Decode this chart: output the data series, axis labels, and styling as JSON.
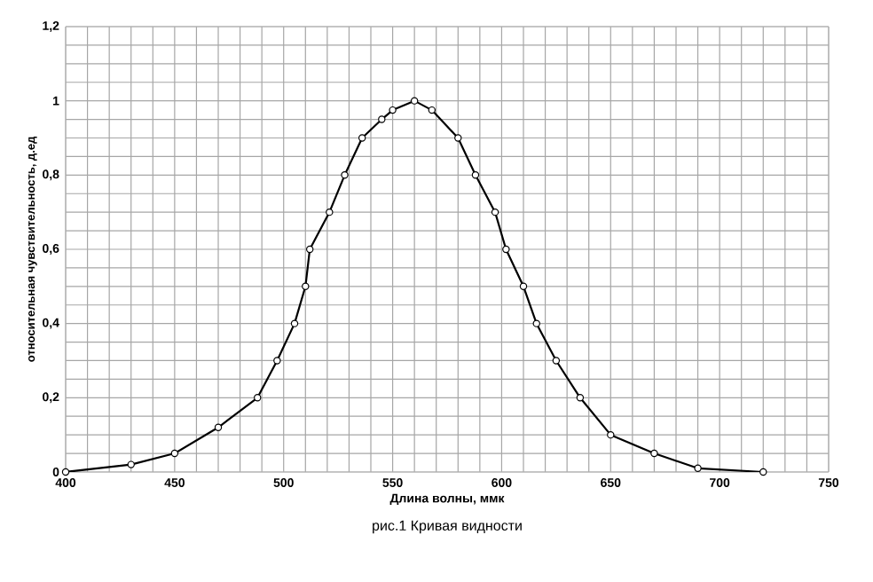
{
  "chart_data": {
    "type": "line",
    "xlabel": "Длина волны, ммк",
    "ylabel": "относительная чувствительность, д.ед",
    "annotations": [
      "рис.1 Кривая видности"
    ],
    "x": [
      400,
      430,
      450,
      470,
      488,
      497,
      505,
      510,
      512,
      521,
      528,
      536,
      545,
      550,
      560,
      568,
      580,
      588,
      597,
      602,
      610,
      616,
      625,
      636,
      650,
      670,
      690,
      720
    ],
    "series": [
      {
        "color": "#000000",
        "values": [
          0,
          0.02,
          0.05,
          0.12,
          0.2,
          0.3,
          0.4,
          0.5,
          0.6,
          0.7,
          0.8,
          0.9,
          0.95,
          0.975,
          1.0,
          0.975,
          0.9,
          0.8,
          0.7,
          0.6,
          0.5,
          0.4,
          0.3,
          0.2,
          0.1,
          0.05,
          0.01,
          0
        ]
      }
    ],
    "xlim": [
      400,
      750
    ],
    "xticks": [
      400,
      450,
      500,
      550,
      600,
      650,
      700,
      750
    ],
    "ylim": [
      0,
      1.2
    ],
    "yticks": [
      0,
      {
        "value": 0.2,
        "label": "0,2"
      },
      {
        "value": 0.4,
        "label": "0,4"
      },
      {
        "value": 0.6,
        "label": "0,6"
      },
      {
        "value": 0.8,
        "label": "0,8"
      },
      1,
      {
        "value": 1.2,
        "label": "1,2"
      }
    ],
    "grid": true,
    "marker": "circle",
    "line_style": "solid"
  }
}
